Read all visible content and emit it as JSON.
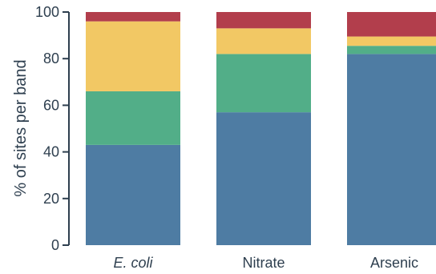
{
  "chart_data": {
    "type": "bar",
    "stacked": true,
    "categories": [
      "E. coli",
      "Nitrate",
      "Arsenic"
    ],
    "category_styles": [
      "italic",
      "normal",
      "normal"
    ],
    "ylabel": "% of sites per band",
    "ylim": [
      0,
      100
    ],
    "yticks": [
      "0",
      "20",
      "40",
      "60",
      "80",
      "100"
    ],
    "legend": "none",
    "grid": false,
    "series": [
      {
        "color": "#4e7ca3",
        "values": [
          43,
          57,
          82
        ]
      },
      {
        "color": "#52ae88",
        "values": [
          23,
          25,
          3.5
        ]
      },
      {
        "color": "#f2c864",
        "values": [
          30,
          11,
          4
        ]
      },
      {
        "color": "#b23e4c",
        "values": [
          4,
          7,
          10.5
        ]
      }
    ]
  }
}
